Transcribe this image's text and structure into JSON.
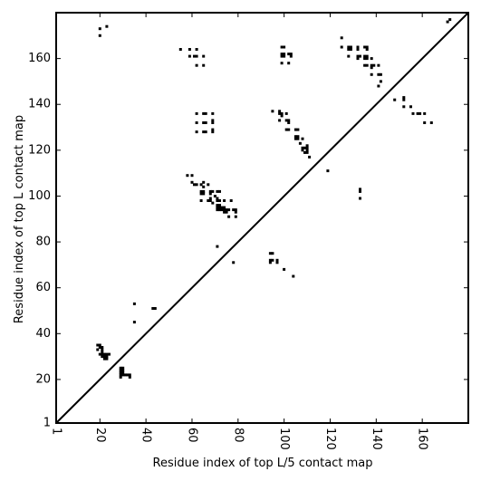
{
  "chart_data": {
    "type": "scatter",
    "title": "",
    "xlabel": "Residue index of top L/5 contact map",
    "ylabel": "Residue index of top L contact map",
    "xlim": [
      1,
      180
    ],
    "ylim": [
      1,
      180
    ],
    "xticks": [
      1,
      20,
      40,
      60,
      80,
      100,
      120,
      140,
      160
    ],
    "yticks": [
      1,
      20,
      40,
      60,
      80,
      100,
      120,
      140,
      160
    ],
    "xtick_rotation": 90,
    "grid": false,
    "legend": "none",
    "marker": "square",
    "colors": {
      "points": "#000000",
      "diagonal": "#000000",
      "frame": "#000000",
      "background": "#ffffff"
    },
    "diagonal": {
      "from": [
        1,
        1
      ],
      "to": [
        180,
        180
      ]
    },
    "series": [
      {
        "name": "",
        "points": [
          [
            20,
            173
          ],
          [
            20,
            170
          ],
          [
            23,
            174
          ],
          [
            55,
            164
          ],
          [
            59,
            164
          ],
          [
            62,
            164
          ],
          [
            59,
            161
          ],
          [
            61,
            161
          ],
          [
            62,
            161
          ],
          [
            65,
            161
          ],
          [
            62,
            157
          ],
          [
            65,
            157
          ],
          [
            62,
            136
          ],
          [
            65,
            136
          ],
          [
            66,
            136
          ],
          [
            69,
            136
          ],
          [
            62,
            132
          ],
          [
            65,
            132
          ],
          [
            66,
            132
          ],
          [
            69,
            132
          ],
          [
            69,
            133
          ],
          [
            62,
            128
          ],
          [
            65,
            128
          ],
          [
            66,
            128
          ],
          [
            69,
            128
          ],
          [
            69,
            129
          ],
          [
            58,
            109
          ],
          [
            60,
            109
          ],
          [
            60,
            106
          ],
          [
            61,
            105
          ],
          [
            62,
            105
          ],
          [
            64,
            105
          ],
          [
            65,
            104
          ],
          [
            65,
            106
          ],
          [
            67,
            105
          ],
          [
            64,
            102
          ],
          [
            65,
            102
          ],
          [
            64,
            101
          ],
          [
            65,
            101
          ],
          [
            68,
            102
          ],
          [
            69,
            102
          ],
          [
            71,
            102
          ],
          [
            72,
            102
          ],
          [
            68,
            101
          ],
          [
            70,
            100
          ],
          [
            64,
            98
          ],
          [
            67,
            98
          ],
          [
            68,
            98
          ],
          [
            68,
            99
          ],
          [
            69,
            97
          ],
          [
            71,
            98
          ],
          [
            71,
            99
          ],
          [
            72,
            98
          ],
          [
            71,
            96
          ],
          [
            72,
            96
          ],
          [
            74,
            98
          ],
          [
            77,
            98
          ],
          [
            71,
            95
          ],
          [
            72,
            95
          ],
          [
            73,
            95
          ],
          [
            74,
            95
          ],
          [
            71,
            94
          ],
          [
            72,
            94
          ],
          [
            73,
            94
          ],
          [
            74,
            94
          ],
          [
            75,
            94
          ],
          [
            76,
            94
          ],
          [
            78,
            94
          ],
          [
            79,
            94
          ],
          [
            79,
            93
          ],
          [
            74,
            93
          ],
          [
            75,
            93
          ],
          [
            76,
            91
          ],
          [
            79,
            91
          ],
          [
            71,
            78
          ],
          [
            78,
            71
          ],
          [
            99,
            165
          ],
          [
            100,
            165
          ],
          [
            99,
            162
          ],
          [
            100,
            162
          ],
          [
            102,
            162
          ],
          [
            103,
            162
          ],
          [
            99,
            161
          ],
          [
            100,
            161
          ],
          [
            103,
            161
          ],
          [
            99,
            158
          ],
          [
            102,
            158
          ],
          [
            95,
            137
          ],
          [
            98,
            137
          ],
          [
            98,
            136
          ],
          [
            99,
            136
          ],
          [
            99,
            135
          ],
          [
            101,
            136
          ],
          [
            98,
            133
          ],
          [
            101,
            133
          ],
          [
            102,
            133
          ],
          [
            102,
            132
          ],
          [
            101,
            129
          ],
          [
            102,
            129
          ],
          [
            105,
            129
          ],
          [
            106,
            129
          ],
          [
            105,
            126
          ],
          [
            106,
            126
          ],
          [
            105,
            125
          ],
          [
            106,
            125
          ],
          [
            108,
            125
          ],
          [
            107,
            123
          ],
          [
            108,
            121
          ],
          [
            109,
            121
          ],
          [
            110,
            121
          ],
          [
            110,
            122
          ],
          [
            110,
            120
          ],
          [
            109,
            119
          ],
          [
            110,
            119
          ],
          [
            108,
            120
          ],
          [
            111,
            117
          ],
          [
            94,
            75
          ],
          [
            95,
            75
          ],
          [
            94,
            72
          ],
          [
            94,
            71
          ],
          [
            95,
            72
          ],
          [
            97,
            72
          ],
          [
            97,
            71
          ],
          [
            100,
            68
          ],
          [
            104,
            65
          ],
          [
            119,
            111
          ],
          [
            125,
            169
          ],
          [
            125,
            165
          ],
          [
            128,
            165
          ],
          [
            129,
            165
          ],
          [
            128,
            164
          ],
          [
            129,
            164
          ],
          [
            132,
            165
          ],
          [
            132,
            164
          ],
          [
            128,
            161
          ],
          [
            132,
            161
          ],
          [
            133,
            161
          ],
          [
            132,
            160
          ],
          [
            135,
            161
          ],
          [
            136,
            161
          ],
          [
            135,
            160
          ],
          [
            136,
            160
          ],
          [
            135,
            165
          ],
          [
            136,
            165
          ],
          [
            136,
            164
          ],
          [
            135,
            157
          ],
          [
            136,
            157
          ],
          [
            138,
            160
          ],
          [
            138,
            157
          ],
          [
            139,
            157
          ],
          [
            138,
            156
          ],
          [
            138,
            153
          ],
          [
            141,
            157
          ],
          [
            141,
            153
          ],
          [
            142,
            153
          ],
          [
            142,
            150
          ],
          [
            141,
            148
          ],
          [
            148,
            142
          ],
          [
            152,
            143
          ],
          [
            152,
            142
          ],
          [
            152,
            139
          ],
          [
            155,
            139
          ],
          [
            156,
            136
          ],
          [
            158,
            136
          ],
          [
            159,
            136
          ],
          [
            161,
            136
          ],
          [
            161,
            132
          ],
          [
            164,
            132
          ],
          [
            133,
            103
          ],
          [
            133,
            102
          ],
          [
            133,
            99
          ],
          [
            171,
            176
          ],
          [
            172,
            177
          ],
          [
            19,
            35
          ],
          [
            20,
            35
          ],
          [
            19,
            33
          ],
          [
            20,
            34
          ],
          [
            21,
            34
          ],
          [
            21,
            33
          ],
          [
            21,
            32
          ],
          [
            20,
            31
          ],
          [
            21,
            31
          ],
          [
            22,
            31
          ],
          [
            23,
            31
          ],
          [
            24,
            31
          ],
          [
            21,
            30
          ],
          [
            22,
            30
          ],
          [
            23,
            30
          ],
          [
            22,
            29
          ],
          [
            23,
            29
          ],
          [
            29,
            25
          ],
          [
            30,
            25
          ],
          [
            29,
            24
          ],
          [
            30,
            24
          ],
          [
            29,
            23
          ],
          [
            30,
            23
          ],
          [
            29,
            22
          ],
          [
            30,
            22
          ],
          [
            31,
            22
          ],
          [
            32,
            22
          ],
          [
            33,
            22
          ],
          [
            29,
            21
          ],
          [
            33,
            21
          ],
          [
            35,
            53
          ],
          [
            43,
            51
          ],
          [
            44,
            51
          ],
          [
            35,
            45
          ]
        ]
      }
    ]
  }
}
